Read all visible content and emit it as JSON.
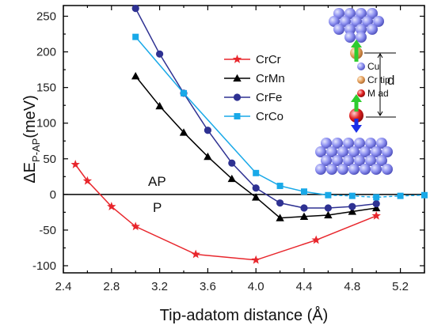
{
  "chart_data": {
    "type": "line",
    "xlabel": "Tip-adatom distance (Å)",
    "ylabel": "ΔE",
    "ylabel_sub": "P-AP",
    "ylabel_unit": "(meV)",
    "xlim": [
      2.4,
      5.4
    ],
    "ylim": [
      -110,
      265
    ],
    "xticks": [
      "2.4",
      "2.8",
      "3.2",
      "3.6",
      "4.0",
      "4.4",
      "4.8",
      "5.2"
    ],
    "xtick_values": [
      2.4,
      2.8,
      3.2,
      3.6,
      4.0,
      4.4,
      4.8,
      5.2
    ],
    "yticks": [
      "250",
      "200",
      "150",
      "100",
      "50",
      "0",
      "-50",
      "-100"
    ],
    "ytick_values": [
      250,
      200,
      150,
      100,
      50,
      0,
      -50,
      -100
    ],
    "reference_line_y": 0,
    "region_labels": {
      "above": "AP",
      "below": "P"
    },
    "legend_position": "top-right",
    "series": [
      {
        "name": "CrCr",
        "color": "#e8262c",
        "marker": "star",
        "dashed_after_index": null,
        "x": [
          2.5,
          2.6,
          2.8,
          3.0,
          3.5,
          4.0,
          4.5,
          5.0
        ],
        "y": [
          42,
          19,
          -17,
          -45,
          -84,
          -92,
          -64,
          -30
        ]
      },
      {
        "name": "CrMn",
        "color": "#000000",
        "marker": "triangle",
        "dashed_after_index": null,
        "x": [
          3.0,
          3.2,
          3.4,
          3.6,
          3.8,
          4.0,
          4.2,
          4.4,
          4.6,
          4.8,
          5.0
        ],
        "y": [
          166,
          124,
          87,
          53,
          22,
          -4,
          -33,
          -31,
          -29,
          -24,
          -19
        ]
      },
      {
        "name": "CrFe",
        "color": "#2e3192",
        "marker": "circle",
        "dashed_after_index": null,
        "x": [
          3.0,
          3.2,
          3.4,
          3.6,
          3.8,
          4.0,
          4.2,
          4.4,
          4.6,
          4.8,
          5.0
        ],
        "y": [
          261,
          197,
          142,
          90,
          44,
          9,
          -12,
          -19,
          -19,
          -17,
          -13
        ]
      },
      {
        "name": "CrCo",
        "color": "#19a9e8",
        "marker": "square",
        "dashed_after_index": 5,
        "x": [
          3.0,
          3.4,
          4.0,
          4.2,
          4.4,
          4.6,
          4.8,
          5.0,
          5.2,
          5.4
        ],
        "y": [
          221,
          142,
          30,
          12,
          4,
          -1,
          -2,
          -4,
          -2,
          -1
        ]
      }
    ],
    "inset": {
      "legend": [
        {
          "label": "Cu",
          "color": "#8c8ff0"
        },
        {
          "label": "Cr tip",
          "color": "#e6a15e"
        },
        {
          "label": "M ad",
          "color": "#e02020"
        }
      ],
      "distance_label": "d"
    }
  }
}
